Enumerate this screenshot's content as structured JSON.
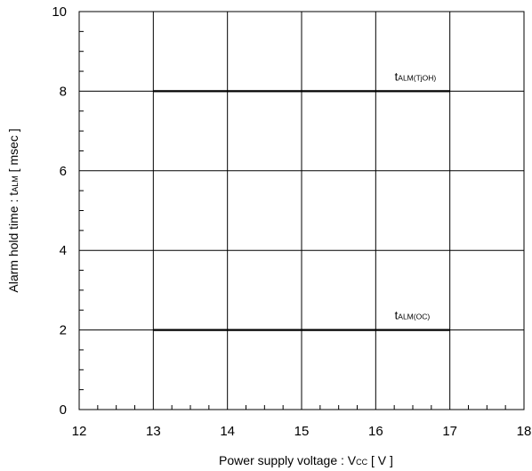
{
  "chart_data": {
    "type": "line",
    "xlabel": {
      "main": "Power supply voltage  :  V",
      "sub": "CC",
      "unit": " [ V ]"
    },
    "ylabel": {
      "main": "Alarm hold time : t",
      "sub": "ALM",
      "unit": " [ msec ]"
    },
    "xlim": [
      12,
      18
    ],
    "ylim": [
      0,
      10
    ],
    "x_ticks": [
      12,
      13,
      14,
      15,
      16,
      17,
      18
    ],
    "y_ticks": [
      0,
      2,
      4,
      6,
      8,
      10
    ],
    "x_tick_labels": [
      "12",
      "13",
      "14",
      "15",
      "16",
      "17",
      "18"
    ],
    "y_tick_labels": [
      "0",
      "2",
      "4",
      "6",
      "8",
      "10"
    ],
    "grid": true,
    "series": [
      {
        "name": "tALM(TjOH)",
        "label_main": "t",
        "label_sub": "ALM(TjOH)",
        "x": [
          13,
          17
        ],
        "y": [
          8,
          8
        ]
      },
      {
        "name": "tALM(OC)",
        "label_main": "t",
        "label_sub": "ALM(OC)",
        "x": [
          13,
          17
        ],
        "y": [
          2,
          2
        ]
      }
    ]
  }
}
